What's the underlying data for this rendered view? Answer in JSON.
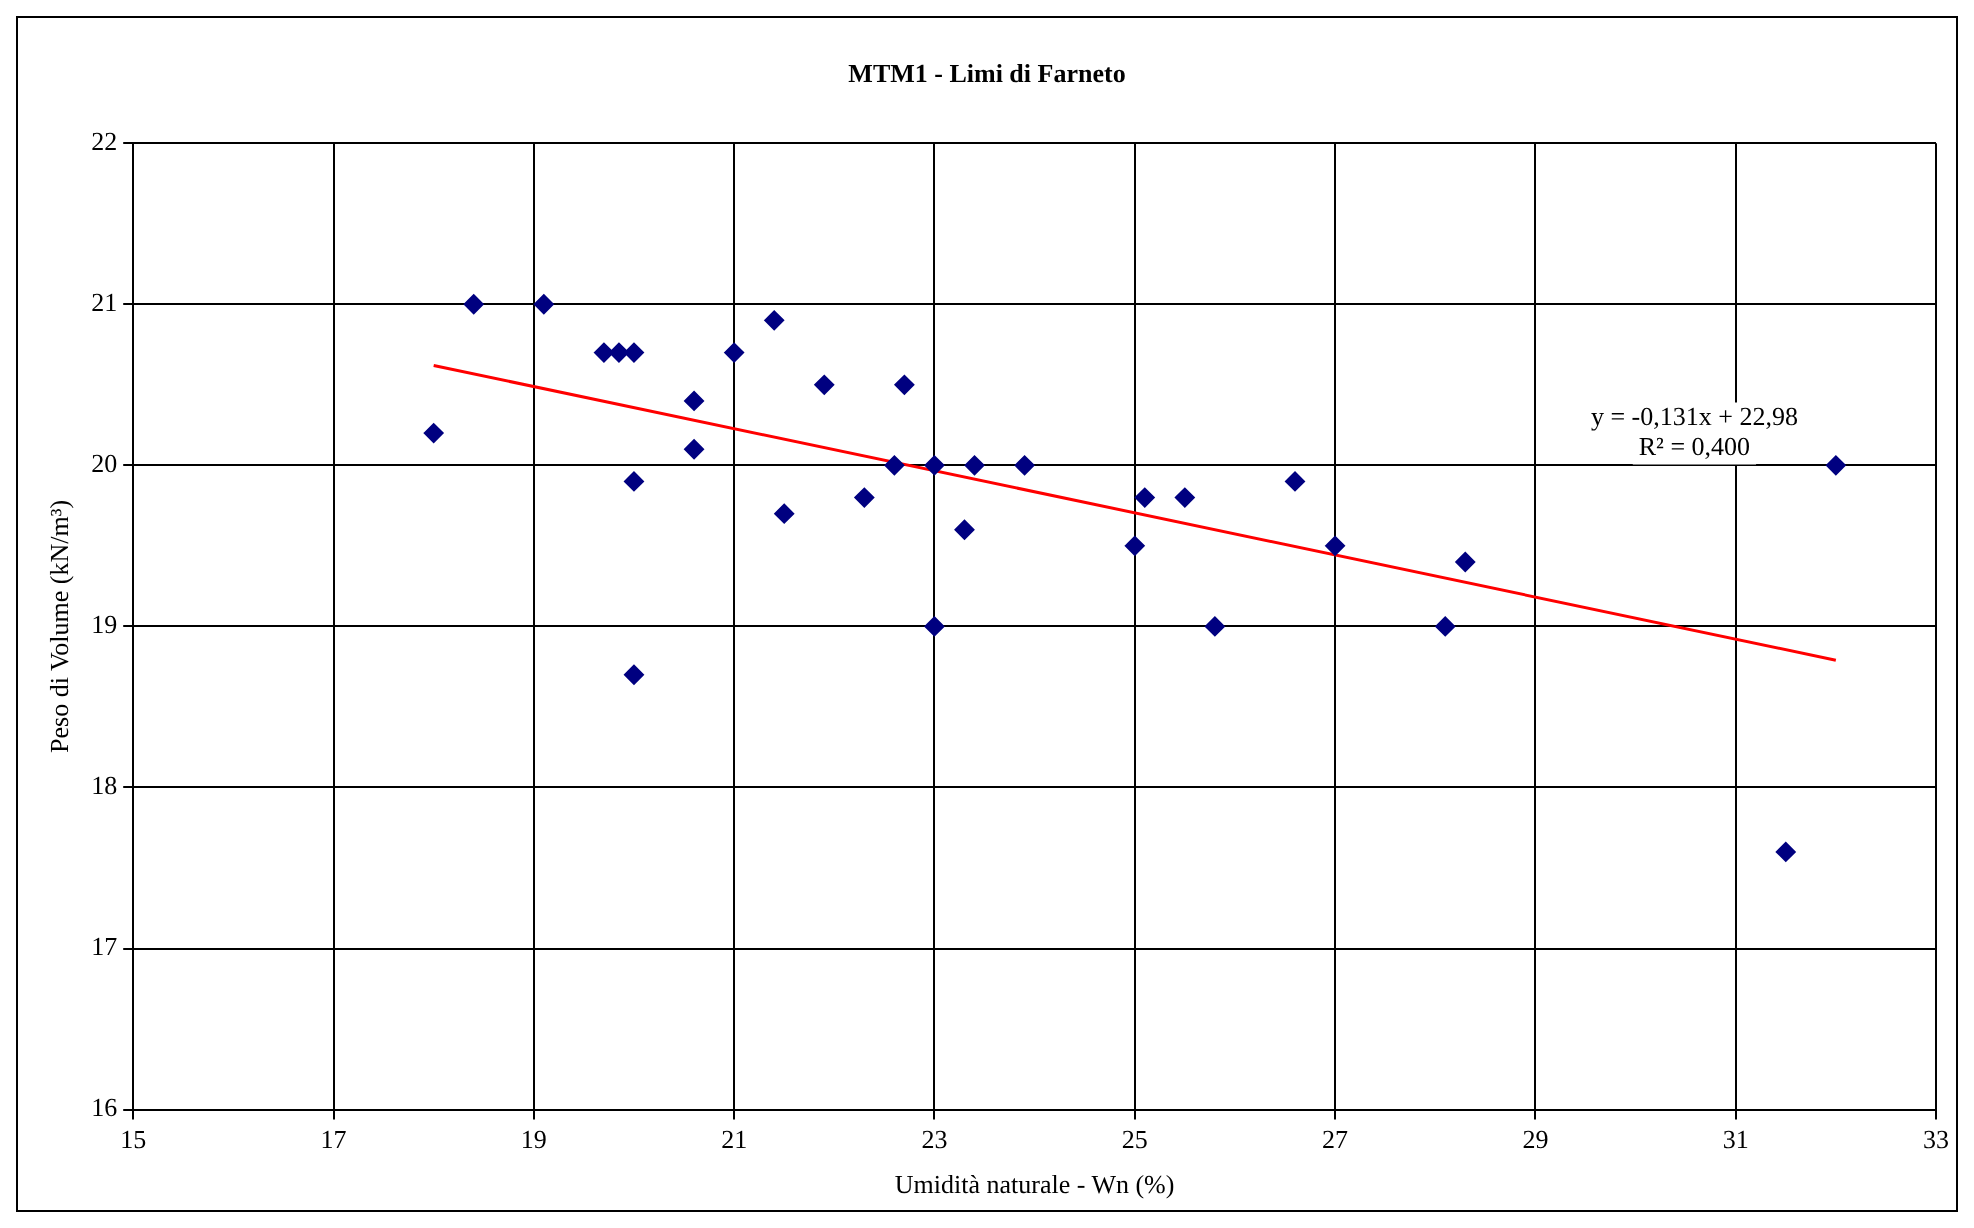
{
  "chart_data": {
    "type": "scatter",
    "title": "MTM1 - Limi di Farneto",
    "xlabel": "Umidità naturale - Wn (%)",
    "ylabel": "Peso di Volume (kN/m³)",
    "xlim": [
      15,
      33
    ],
    "xticks": [
      15,
      17,
      19,
      21,
      23,
      25,
      27,
      29,
      31,
      33
    ],
    "ylim": [
      16,
      22
    ],
    "yticks": [
      16,
      17,
      18,
      19,
      20,
      21,
      22
    ],
    "grid": true,
    "legend": false,
    "series": [
      {
        "color": "#000080",
        "marker": "diamond",
        "x": [
          18.0,
          18.4,
          19.1,
          19.7,
          19.85,
          20.0,
          20.0,
          20.0,
          20.6,
          20.6,
          21.0,
          21.4,
          21.5,
          21.9,
          22.3,
          22.6,
          22.7,
          23.0,
          23.0,
          23.3,
          23.4,
          23.9,
          25.0,
          25.1,
          25.5,
          25.8,
          26.6,
          27.0,
          28.1,
          28.3,
          31.5,
          32.0
        ],
        "values": [
          20.2,
          21.0,
          21.0,
          20.7,
          20.7,
          20.7,
          19.9,
          18.7,
          20.4,
          20.1,
          20.7,
          20.9,
          19.7,
          20.5,
          19.8,
          20.0,
          20.5,
          20.0,
          19.0,
          19.6,
          20.0,
          20.0,
          19.5,
          19.8,
          19.8,
          19.0,
          19.9,
          19.5,
          19.0,
          19.4,
          17.6,
          20.0
        ]
      },
      {
        "type": "line",
        "color": "#ff0000",
        "marker": "none",
        "x": [
          18,
          32
        ],
        "values": [
          20.62,
          18.79
        ]
      }
    ],
    "annotations": [
      "y = -0,131x + 22,98",
      "R² = 0,400"
    ]
  }
}
